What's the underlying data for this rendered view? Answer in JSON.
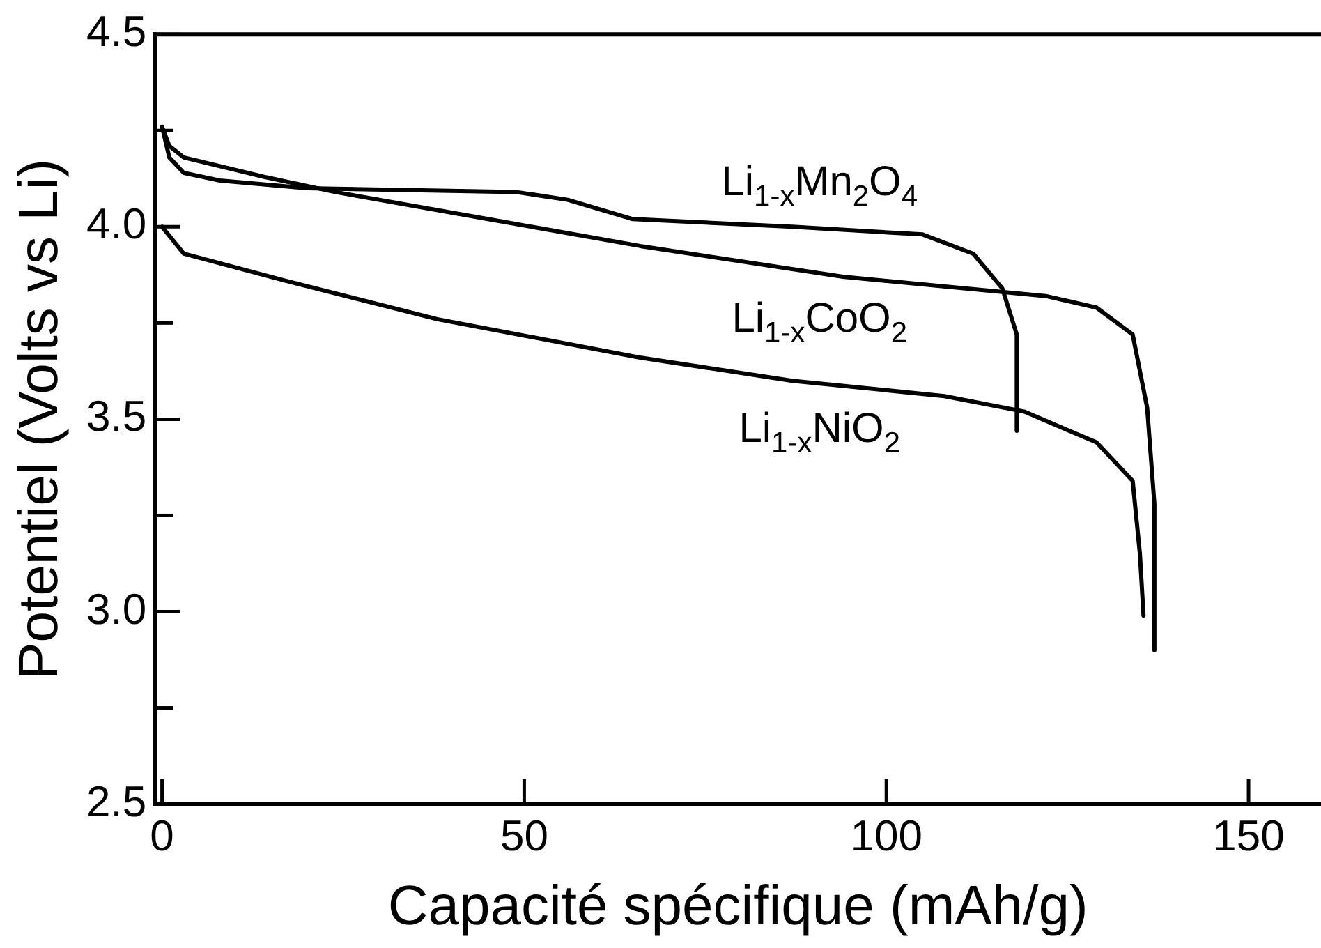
{
  "chart_data": {
    "type": "line",
    "xlabel": "Capacité spécifique (mAh/g)",
    "ylabel": "Potentiel (Volts vs Li)",
    "xlim": [
      -1,
      160
    ],
    "ylim": [
      2.5,
      4.5
    ],
    "xticks": [
      0,
      50,
      100,
      150
    ],
    "yticks": [
      2.5,
      {
        "value": 2.75,
        "label": null
      },
      {
        "value": 3,
        "label": "3.0"
      },
      {
        "value": 3.25,
        "label": null
      },
      3.5,
      {
        "value": 3.75,
        "label": null
      },
      {
        "value": 4,
        "label": "4.0"
      },
      {
        "value": 4.25,
        "label": null
      },
      4.5
    ],
    "grid": false,
    "legend": false,
    "marker": "none",
    "line_style": "solid",
    "series": [
      {
        "name": "Li$_{1-x}$Mn$_{2}$O$_{4}$",
        "color": "#000000",
        "x": [
          0,
          1,
          3,
          8,
          20,
          49,
          56,
          65,
          87,
          105,
          112,
          116,
          118,
          118
        ],
        "values": [
          4.26,
          4.18,
          4.14,
          4.12,
          4.1,
          4.09,
          4.07,
          4.02,
          4.0,
          3.98,
          3.93,
          3.84,
          3.72,
          3.47
        ]
      },
      {
        "name": "Li$_{1-x}$CoO$_{2}$",
        "color": "#000000",
        "x": [
          0,
          1,
          3,
          14,
          24,
          45,
          66,
          94,
          122,
          129,
          134,
          136,
          137,
          137
        ],
        "values": [
          4.26,
          4.21,
          4.18,
          4.13,
          4.09,
          4.02,
          3.95,
          3.87,
          3.82,
          3.79,
          3.72,
          3.53,
          3.28,
          2.9
        ]
      },
      {
        "name": "Li$_{1-x}$NiO$_{2}$",
        "color": "#000000",
        "x": [
          0,
          3,
          17,
          38,
          66,
          87,
          108,
          119,
          129,
          134,
          135,
          135.5
        ],
        "values": [
          4.0,
          3.93,
          3.86,
          3.76,
          3.66,
          3.6,
          3.56,
          3.52,
          3.44,
          3.34,
          3.15,
          2.99
        ]
      }
    ]
  }
}
